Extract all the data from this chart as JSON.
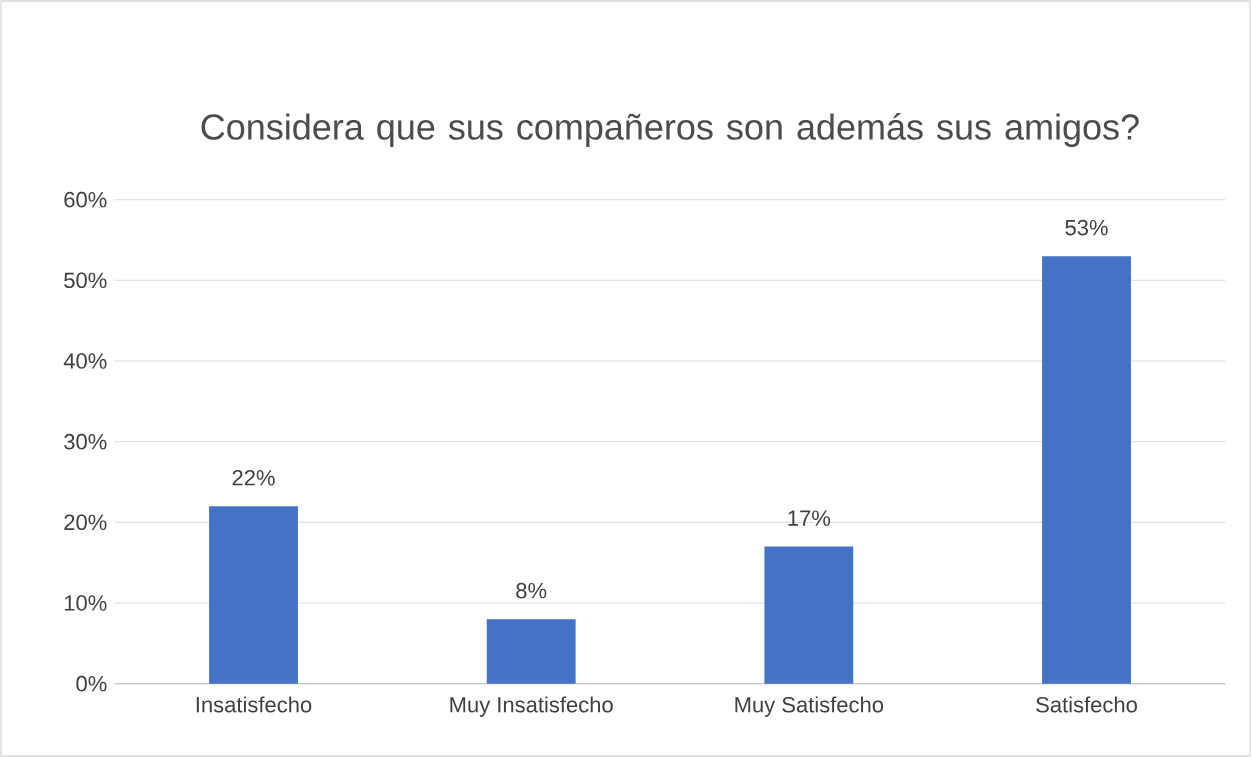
{
  "chart_data": {
    "type": "bar",
    "title": "Considera que sus compañeros son además sus amigos?",
    "categories": [
      "Insatisfecho",
      "Muy Insatisfecho",
      "Muy Satisfecho",
      "Satisfecho"
    ],
    "values": [
      22,
      8,
      17,
      53
    ],
    "value_labels": [
      "22%",
      "8%",
      "17%",
      "53%"
    ],
    "color": "#4472c4",
    "ylim": [
      0,
      60
    ],
    "yticks": [
      {
        "value": 0,
        "label": "0%"
      },
      {
        "value": 10,
        "label": "10%"
      },
      {
        "value": 20,
        "label": "20%"
      },
      {
        "value": 30,
        "label": "30%"
      },
      {
        "value": 40,
        "label": "40%"
      },
      {
        "value": 50,
        "label": "50%"
      },
      {
        "value": 60,
        "label": "60%"
      }
    ],
    "grid": "y"
  }
}
